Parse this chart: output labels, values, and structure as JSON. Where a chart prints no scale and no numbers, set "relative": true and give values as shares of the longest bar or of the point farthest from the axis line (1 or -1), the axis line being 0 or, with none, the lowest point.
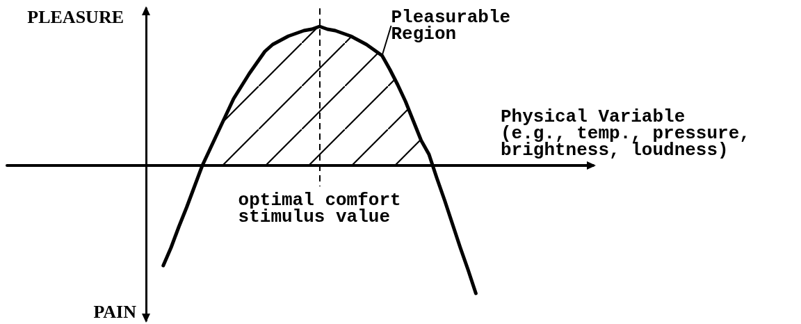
{
  "chart_data": {
    "type": "line",
    "relative": true,
    "marker": "none",
    "line_style": "solid",
    "xlabel": "Physical Variable (e.g., temp., pressure, brightness, loudness)",
    "ylabel": "PLEASURE",
    "annotations": [
      "PAIN",
      "optimal comfort stimulus value"
    ],
    "categories": [
      null,
      null,
      null,
      null,
      null,
      null,
      null,
      null,
      null,
      null,
      null,
      null,
      null,
      null,
      null,
      null,
      null,
      null,
      null,
      null,
      null,
      null,
      null,
      null,
      null,
      null,
      null,
      null,
      null,
      null,
      null,
      null,
      null,
      null,
      null,
      null,
      null,
      null,
      null,
      null,
      null,
      null,
      null,
      null,
      null,
      null,
      null,
      null,
      null,
      null,
      null,
      null,
      null,
      null,
      null,
      null,
      null,
      null,
      null,
      null,
      null,
      null,
      null,
      null,
      null,
      null,
      null,
      null,
      null,
      null,
      null,
      null,
      null,
      null,
      null,
      null
    ],
    "series": [
      {
        "color": "#000000",
        "values": [
          null,
          null,
          null,
          null,
          null,
          null,
          null,
          null,
          null,
          null,
          null,
          null,
          null,
          null,
          null,
          null,
          null,
          null,
          null,
          null,
          -0.72,
          -0.59,
          -0.44,
          -0.3,
          -0.15,
          0.0,
          0.12,
          0.24,
          0.36,
          0.48,
          0.57,
          0.66,
          0.74,
          0.82,
          0.87,
          0.9,
          0.93,
          0.95,
          0.97,
          0.98,
          1.0,
          0.98,
          0.97,
          0.95,
          0.93,
          0.9,
          0.87,
          0.83,
          0.79,
          0.69,
          0.58,
          0.46,
          0.32,
          0.18,
          0.08,
          -0.09,
          -0.25,
          -0.42,
          -0.59,
          -0.75,
          -0.92,
          null,
          null,
          null,
          null,
          null,
          null,
          null,
          null,
          null,
          null,
          null,
          null,
          null,
          null,
          null
        ]
      },
      {
        "type": "area",
        "name": "Pleasurable Region",
        "color": "#000000",
        "values": [
          null,
          null,
          null,
          null,
          null,
          null,
          null,
          null,
          null,
          null,
          null,
          null,
          null,
          null,
          null,
          null,
          null,
          null,
          null,
          null,
          null,
          null,
          null,
          null,
          null,
          0.0,
          0.12,
          0.24,
          0.36,
          0.48,
          0.57,
          0.66,
          0.74,
          0.82,
          0.87,
          0.9,
          0.93,
          0.95,
          0.97,
          0.98,
          1.0,
          0.98,
          0.97,
          0.95,
          0.93,
          0.9,
          0.87,
          0.83,
          0.79,
          0.69,
          0.58,
          0.46,
          0.32,
          0.18,
          0.08,
          0,
          null,
          null,
          null,
          null,
          null,
          null,
          null,
          null,
          null,
          null,
          null,
          null,
          null,
          null,
          null,
          null,
          null,
          null,
          null,
          null
        ]
      }
    ]
  }
}
